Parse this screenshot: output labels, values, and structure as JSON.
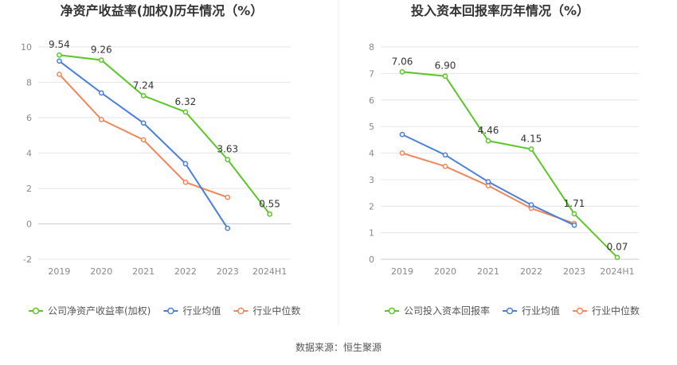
{
  "source_text": "数据来源：恒生聚源",
  "colors": {
    "company": "#5cc528",
    "avg": "#4a7fd9",
    "median": "#f0875a",
    "grid": "#e6e6e6",
    "axis_text": "#888888",
    "title": "#333333",
    "label": "#333333"
  },
  "chart_data": [
    {
      "type": "line",
      "title": "净资产收益率(加权)历年情况（%）",
      "categories": [
        "2019",
        "2020",
        "2021",
        "2022",
        "2023",
        "2024H1"
      ],
      "ylim": [
        -2,
        10
      ],
      "yticks": [
        -2,
        0,
        2,
        4,
        6,
        8,
        10
      ],
      "grid": true,
      "legend_position": "bottom-left",
      "series": [
        {
          "name": "公司净资产收益率(加权)",
          "key": "company",
          "values": [
            9.54,
            9.26,
            7.24,
            6.32,
            3.63,
            0.55
          ],
          "labels": [
            "9.54",
            "9.26",
            "7.24",
            "6.32",
            "3.63",
            "0.55"
          ]
        },
        {
          "name": "行业均值",
          "key": "avg",
          "values": [
            9.2,
            7.4,
            5.7,
            3.4,
            -0.25,
            null
          ]
        },
        {
          "name": "行业中位数",
          "key": "median",
          "values": [
            8.45,
            5.9,
            4.75,
            2.35,
            1.5,
            null
          ]
        }
      ]
    },
    {
      "type": "line",
      "title": "投入资本回报率历年情况（%）",
      "categories": [
        "2019",
        "2020",
        "2021",
        "2022",
        "2023",
        "2024H1"
      ],
      "ylim": [
        0,
        8
      ],
      "yticks": [
        0,
        1,
        2,
        3,
        4,
        5,
        6,
        7,
        8
      ],
      "grid": true,
      "legend_position": "bottom-left",
      "series": [
        {
          "name": "公司投入资本回报率",
          "key": "company",
          "values": [
            7.06,
            6.9,
            4.46,
            4.15,
            1.71,
            0.07
          ],
          "labels": [
            "7.06",
            "6.90",
            "4.46",
            "4.15",
            "1.71",
            "0.07"
          ]
        },
        {
          "name": "行业均值",
          "key": "avg",
          "values": [
            4.7,
            3.93,
            2.92,
            2.05,
            1.28,
            null
          ]
        },
        {
          "name": "行业中位数",
          "key": "median",
          "values": [
            4.0,
            3.5,
            2.77,
            1.92,
            1.35,
            null
          ]
        }
      ]
    }
  ]
}
